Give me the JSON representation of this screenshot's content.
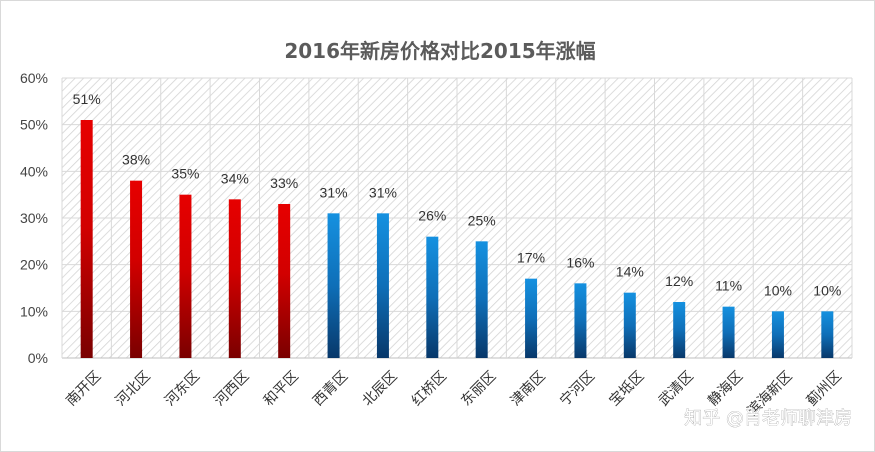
{
  "chart_data": {
    "type": "bar",
    "title": "2016年新房价格对比2015年涨幅",
    "xlabel": "",
    "ylabel": "",
    "ylim": [
      0,
      60
    ],
    "yticks": [
      "0%",
      "10%",
      "20%",
      "30%",
      "40%",
      "50%",
      "60%"
    ],
    "grid": true,
    "categories": [
      "南开区",
      "河北区",
      "河东区",
      "河西区",
      "和平区",
      "西青区",
      "北辰区",
      "红桥区",
      "东丽区",
      "津南区",
      "宁河区",
      "宝坻区",
      "武清区",
      "静海区",
      "滨海新区",
      "蓟州区"
    ],
    "values": [
      51,
      38,
      35,
      34,
      33,
      31,
      31,
      26,
      25,
      17,
      16,
      14,
      12,
      11,
      10,
      10
    ],
    "data_labels": [
      "51%",
      "38%",
      "35%",
      "34%",
      "33%",
      "31%",
      "31%",
      "26%",
      "25%",
      "17%",
      "16%",
      "14%",
      "12%",
      "11%",
      "10%",
      "10%"
    ],
    "bar_groups": [
      "red",
      "red",
      "red",
      "red",
      "red",
      "blue",
      "blue",
      "blue",
      "blue",
      "blue",
      "blue",
      "blue",
      "blue",
      "blue",
      "blue",
      "blue"
    ],
    "colors": {
      "red_top": "#e60000",
      "red_bottom": "#7a0000",
      "blue_top": "#1591e0",
      "blue_bottom": "#08386a",
      "grid": "#d9d9d9",
      "hatch": "#d4d4d4",
      "axis": "#bfbfbf"
    }
  },
  "watermark": "知乎 @肖老师聊津房"
}
